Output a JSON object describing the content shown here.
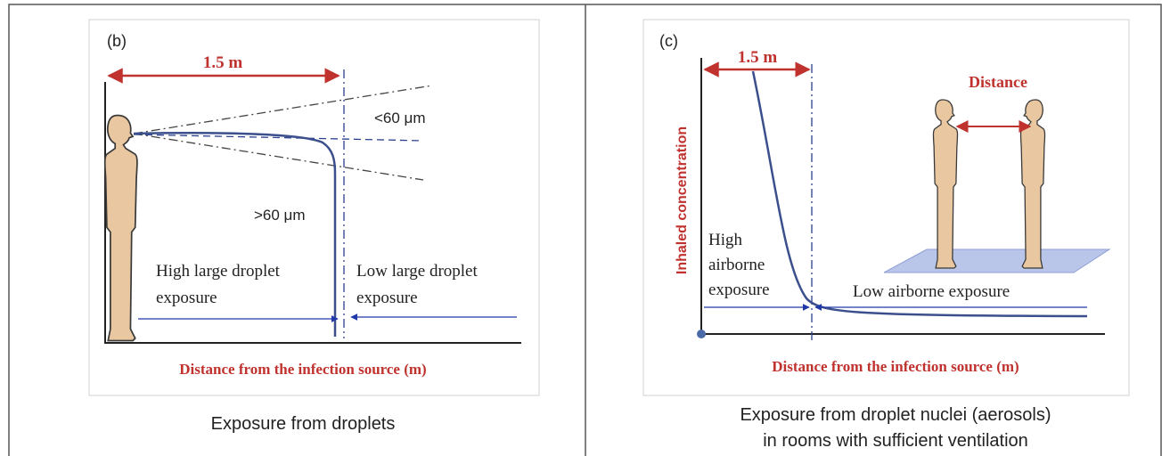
{
  "panel_b": {
    "label": "(b)",
    "distance": "1.5 m",
    "small_droplets": "<60 μm",
    "large_droplets": ">60 μm",
    "high_exposure": [
      "High large droplet",
      "exposure"
    ],
    "low_exposure": [
      "Low large droplet",
      "exposure"
    ],
    "x_axis_label": "Distance from the infection source (m)",
    "caption": "Exposure from droplets"
  },
  "panel_c": {
    "label": "(c)",
    "distance": "1.5 m",
    "people_distance": "Distance",
    "y_axis_label": "Inhaled concentration",
    "high_exposure": [
      "High",
      "airborne",
      "exposure"
    ],
    "low_exposure": "Low airborne exposure",
    "x_axis_label": "Distance from the infection source (m)",
    "caption": [
      "Exposure from droplet nuclei (aerosols)",
      "in rooms with sufficient ventilation"
    ]
  }
}
